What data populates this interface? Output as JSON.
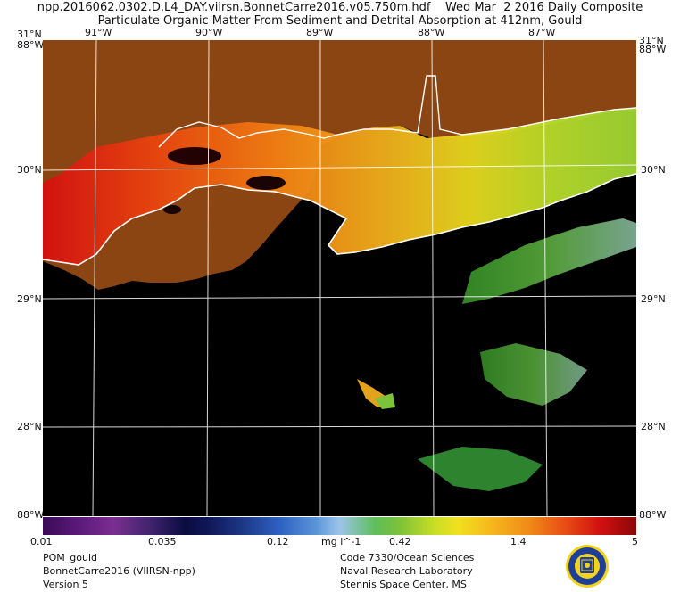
{
  "header": {
    "line1": "npp.2016062.0302.D.L4_DAY.viirsn.BonnetCarre2016.v05.750m.hdf    Wed Mar  2 2016 Daily Composite",
    "line2": "Particulate Organic Matter From Sediment and Detrital Absorption at 412nm, Gould"
  },
  "map": {
    "lon_labels": [
      "91°W",
      "90°W",
      "89°W",
      "88°W",
      "87°W"
    ],
    "lat_labels": [
      "30°N",
      "29°N",
      "28°N"
    ],
    "corner_top_left": "31°N",
    "corner_top_right": "31°N",
    "corner_left_top": "88°W",
    "corner_right_top": "88°W",
    "corner_bottom_left": "88°W",
    "corner_bottom_right": "88°W",
    "land_color": "#8b4513",
    "water_color": "#000000",
    "coast_color": "#ffffff",
    "grid_color": "#ffffff"
  },
  "colorbar": {
    "ticks": [
      "0.01",
      "0.035",
      "0.12",
      "0.42",
      "1.4",
      "5"
    ],
    "unit": "mg l^-1"
  },
  "footer": {
    "left": [
      "POM_gould",
      "BonnetCarre2016 (VIIRSN-npp)",
      "Version 5"
    ],
    "right": [
      "Code 7330/Ocean Sciences",
      "Naval Research Laboratory",
      "Stennis Space Center, MS"
    ]
  },
  "logo": {
    "icon": "nrl-seal-icon",
    "colors": [
      "#1d3f9a",
      "#f2d21a"
    ]
  }
}
